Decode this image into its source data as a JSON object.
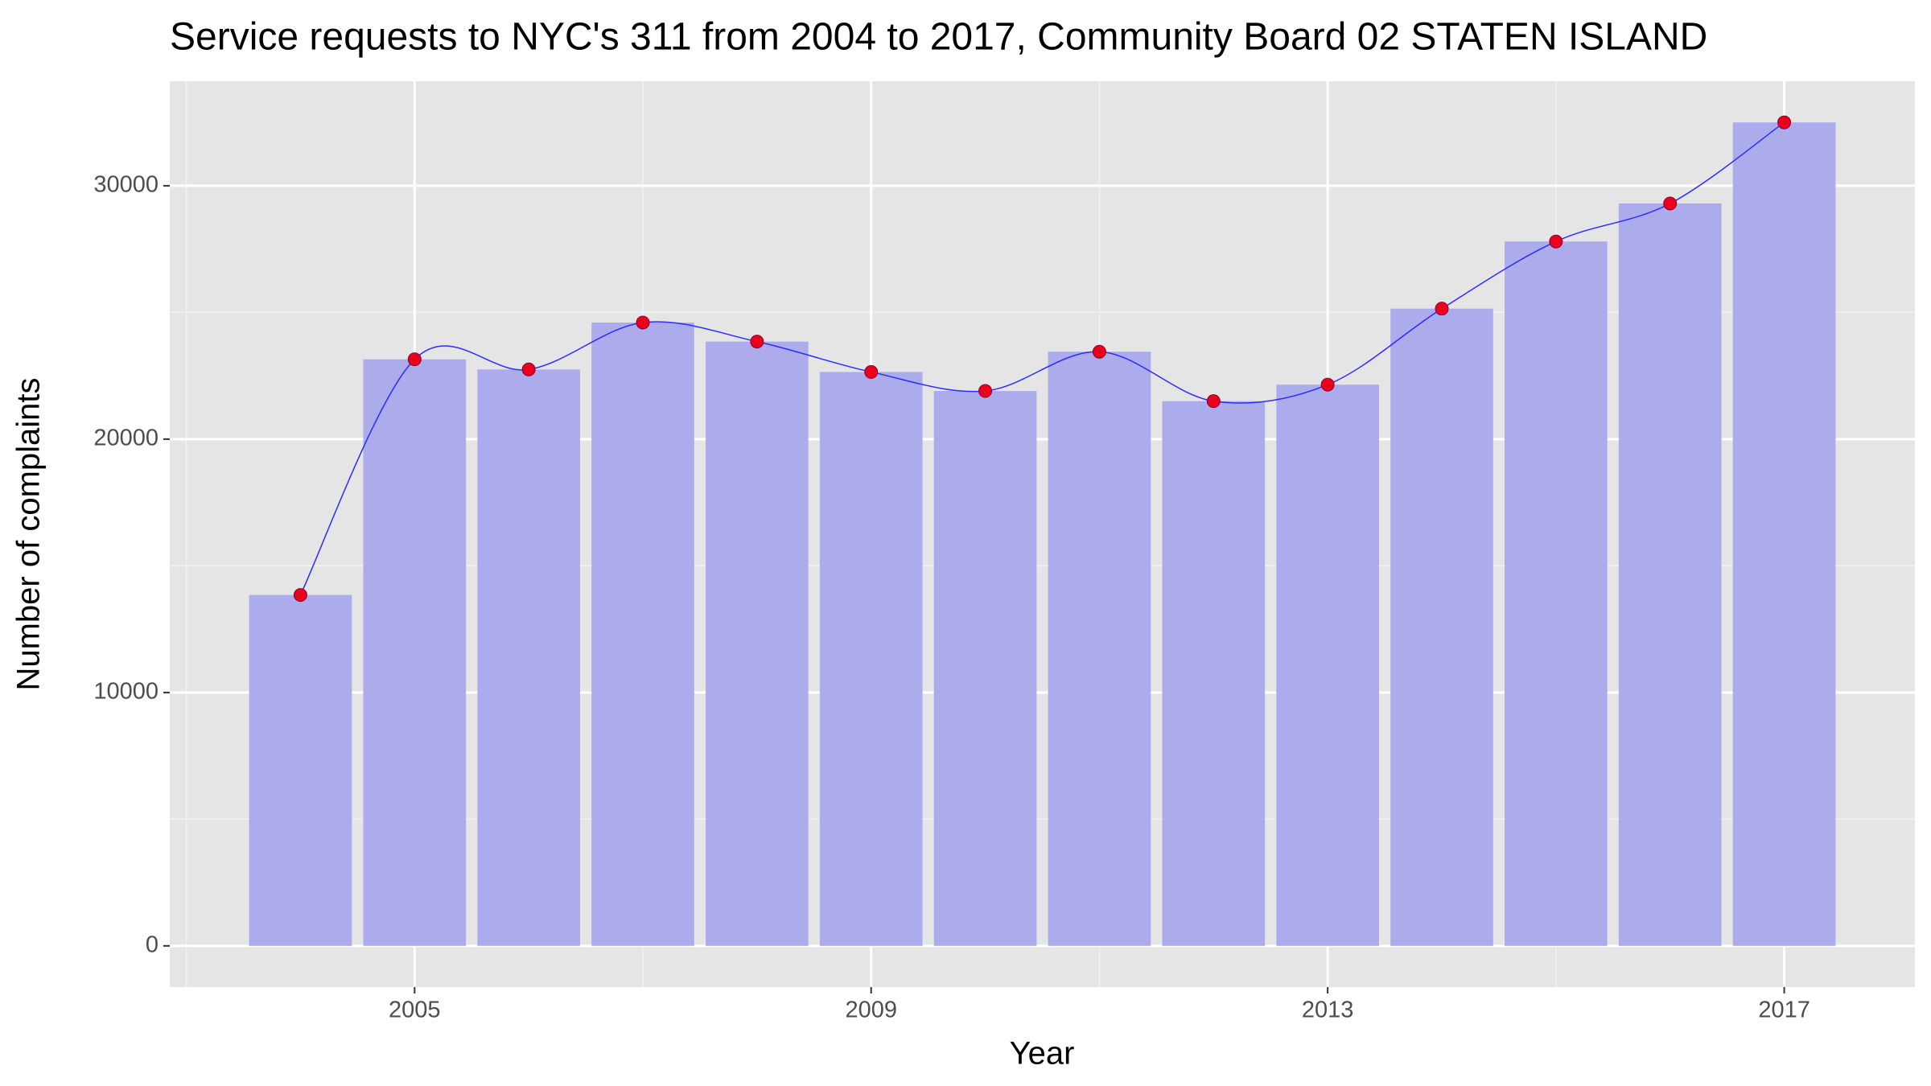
{
  "chart_data": {
    "type": "bar",
    "title": "Service requests to NYC's 311 from 2004 to 2017, Community Board 02 STATEN ISLAND",
    "x_label": "Year",
    "y_label": "Number of complaints",
    "x": [
      2004,
      2005,
      2006,
      2007,
      2008,
      2009,
      2010,
      2011,
      2012,
      2013,
      2014,
      2015,
      2016,
      2017
    ],
    "values": [
      13850,
      23150,
      22750,
      24600,
      23850,
      22650,
      21900,
      23450,
      21500,
      22150,
      25150,
      27800,
      29300,
      32500
    ],
    "color": "#acacec",
    "point_color": "#e8001c",
    "smooth_color": "#2b2bff",
    "xlim": [
      2002.855,
      2018.145
    ],
    "xticks": [
      2005,
      2009,
      2013,
      2017
    ],
    "xminor": [
      2003,
      2007,
      2011,
      2015
    ],
    "ylim": [
      -1625,
      34125
    ],
    "yticks": [
      0,
      10000,
      20000,
      30000
    ],
    "yminor": [
      5000,
      15000,
      25000
    ],
    "grid": true,
    "panel_color": "#e5e5e5"
  }
}
